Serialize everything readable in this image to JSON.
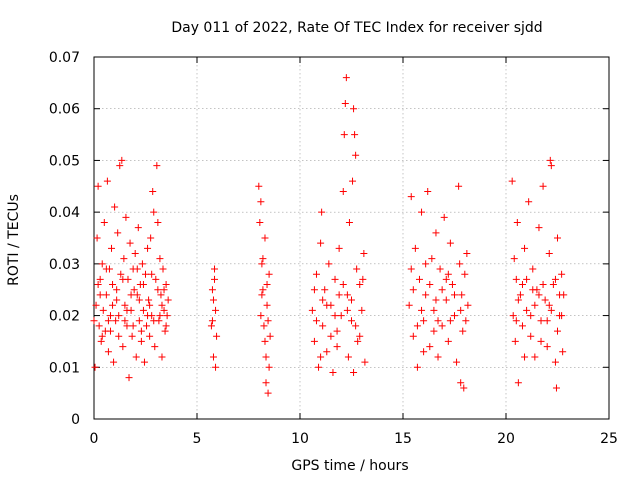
{
  "chart_data": {
    "type": "scatter",
    "title": "Day 011 of 2022, Rate Of TEC Index for receiver sjdd",
    "xlabel": "GPS time / hours",
    "ylabel": "ROTI / TECUs",
    "xlim": [
      0,
      25
    ],
    "ylim": [
      0,
      0.07
    ],
    "x_ticks": [
      "0",
      "5",
      "10",
      "15",
      "20",
      "25"
    ],
    "y_ticks": [
      "0",
      "0.01",
      "0.02",
      "0.03",
      "0.04",
      "0.05",
      "0.06",
      "0.07"
    ],
    "grid": true,
    "marker": "+",
    "color": "#ff0000",
    "series": [
      {
        "name": "ROTI",
        "points": [
          [
            0.0,
            0.019
          ],
          [
            0.05,
            0.01
          ],
          [
            0.1,
            0.022
          ],
          [
            0.15,
            0.035
          ],
          [
            0.2,
            0.045
          ],
          [
            0.25,
            0.018
          ],
          [
            0.3,
            0.027
          ],
          [
            0.35,
            0.015
          ],
          [
            0.4,
            0.03
          ],
          [
            0.45,
            0.021
          ],
          [
            0.5,
            0.038
          ],
          [
            0.55,
            0.017
          ],
          [
            0.6,
            0.024
          ],
          [
            0.65,
            0.046
          ],
          [
            0.7,
            0.013
          ],
          [
            0.75,
            0.029
          ],
          [
            0.8,
            0.02
          ],
          [
            0.85,
            0.033
          ],
          [
            0.9,
            0.026
          ],
          [
            0.95,
            0.011
          ],
          [
            1.0,
            0.041
          ],
          [
            1.05,
            0.019
          ],
          [
            1.1,
            0.023
          ],
          [
            1.15,
            0.036
          ],
          [
            1.2,
            0.016
          ],
          [
            1.25,
            0.049
          ],
          [
            1.3,
            0.028
          ],
          [
            1.35,
            0.05
          ],
          [
            1.4,
            0.014
          ],
          [
            1.45,
            0.031
          ],
          [
            1.5,
            0.022
          ],
          [
            1.55,
            0.039
          ],
          [
            1.6,
            0.018
          ],
          [
            1.65,
            0.027
          ],
          [
            1.7,
            0.008
          ],
          [
            1.75,
            0.034
          ],
          [
            1.8,
            0.021
          ],
          [
            1.85,
            0.016
          ],
          [
            1.9,
            0.029
          ],
          [
            1.95,
            0.025
          ],
          [
            2.0,
            0.032
          ],
          [
            2.05,
            0.012
          ],
          [
            2.1,
            0.024
          ],
          [
            2.15,
            0.037
          ],
          [
            2.2,
            0.019
          ],
          [
            2.25,
            0.026
          ],
          [
            2.3,
            0.015
          ],
          [
            2.35,
            0.03
          ],
          [
            2.4,
            0.021
          ],
          [
            2.45,
            0.011
          ],
          [
            2.5,
            0.028
          ],
          [
            2.55,
            0.018
          ],
          [
            2.6,
            0.033
          ],
          [
            2.65,
            0.023
          ],
          [
            2.7,
            0.016
          ],
          [
            2.75,
            0.035
          ],
          [
            2.8,
            0.02
          ],
          [
            2.85,
            0.044
          ],
          [
            2.9,
            0.04
          ],
          [
            2.95,
            0.014
          ],
          [
            3.0,
            0.027
          ],
          [
            3.05,
            0.049
          ],
          [
            3.1,
            0.038
          ],
          [
            3.15,
            0.019
          ],
          [
            3.2,
            0.031
          ],
          [
            3.25,
            0.024
          ],
          [
            3.3,
            0.012
          ],
          [
            3.35,
            0.029
          ],
          [
            3.4,
            0.021
          ],
          [
            3.45,
            0.017
          ],
          [
            3.5,
            0.026
          ],
          [
            3.55,
            0.02
          ],
          [
            3.6,
            0.023
          ],
          [
            0.3,
            0.024
          ],
          [
            0.7,
            0.019
          ],
          [
            1.1,
            0.025
          ],
          [
            1.6,
            0.021
          ],
          [
            2.2,
            0.023
          ],
          [
            2.7,
            0.022
          ],
          [
            3.2,
            0.02
          ],
          [
            0.4,
            0.016
          ],
          [
            0.9,
            0.022
          ],
          [
            1.4,
            0.027
          ],
          [
            1.9,
            0.018
          ],
          [
            2.4,
            0.026
          ],
          [
            2.9,
            0.019
          ],
          [
            3.4,
            0.025
          ],
          [
            0.6,
            0.029
          ],
          [
            1.2,
            0.02
          ],
          [
            1.8,
            0.024
          ],
          [
            2.3,
            0.017
          ],
          [
            2.8,
            0.028
          ],
          [
            3.3,
            0.022
          ],
          [
            0.2,
            0.026
          ],
          [
            0.8,
            0.017
          ],
          [
            1.5,
            0.019
          ],
          [
            2.1,
            0.029
          ],
          [
            2.6,
            0.02
          ],
          [
            3.1,
            0.025
          ],
          [
            3.5,
            0.018
          ],
          [
            5.7,
            0.018
          ],
          [
            5.75,
            0.025
          ],
          [
            5.8,
            0.012
          ],
          [
            5.85,
            0.029
          ],
          [
            5.9,
            0.021
          ],
          [
            5.95,
            0.016
          ],
          [
            5.8,
            0.023
          ],
          [
            5.9,
            0.01
          ],
          [
            5.75,
            0.019
          ],
          [
            5.85,
            0.027
          ],
          [
            8.0,
            0.045
          ],
          [
            8.05,
            0.038
          ],
          [
            8.1,
            0.042
          ],
          [
            8.15,
            0.03
          ],
          [
            8.2,
            0.025
          ],
          [
            8.25,
            0.018
          ],
          [
            8.3,
            0.035
          ],
          [
            8.35,
            0.012
          ],
          [
            8.4,
            0.022
          ],
          [
            8.45,
            0.005
          ],
          [
            8.5,
            0.028
          ],
          [
            8.55,
            0.016
          ],
          [
            8.1,
            0.02
          ],
          [
            8.2,
            0.031
          ],
          [
            8.3,
            0.015
          ],
          [
            8.4,
            0.026
          ],
          [
            8.5,
            0.01
          ],
          [
            8.35,
            0.007
          ],
          [
            8.15,
            0.024
          ],
          [
            8.45,
            0.019
          ],
          [
            10.6,
            0.021
          ],
          [
            10.7,
            0.015
          ],
          [
            10.8,
            0.028
          ],
          [
            10.9,
            0.01
          ],
          [
            11.0,
            0.034
          ],
          [
            11.05,
            0.04
          ],
          [
            11.1,
            0.018
          ],
          [
            11.2,
            0.025
          ],
          [
            11.3,
            0.013
          ],
          [
            11.4,
            0.03
          ],
          [
            11.5,
            0.022
          ],
          [
            11.6,
            0.009
          ],
          [
            11.7,
            0.027
          ],
          [
            11.8,
            0.017
          ],
          [
            11.9,
            0.033
          ],
          [
            12.0,
            0.02
          ],
          [
            12.1,
            0.044
          ],
          [
            12.15,
            0.055
          ],
          [
            12.2,
            0.061
          ],
          [
            12.25,
            0.066
          ],
          [
            12.3,
            0.024
          ],
          [
            12.35,
            0.012
          ],
          [
            12.4,
            0.038
          ],
          [
            12.5,
            0.019
          ],
          [
            12.55,
            0.046
          ],
          [
            12.6,
            0.06
          ],
          [
            12.65,
            0.055
          ],
          [
            12.7,
            0.051
          ],
          [
            12.75,
            0.029
          ],
          [
            12.8,
            0.015
          ],
          [
            12.9,
            0.026
          ],
          [
            13.0,
            0.021
          ],
          [
            13.1,
            0.032
          ],
          [
            13.15,
            0.011
          ],
          [
            11.1,
            0.023
          ],
          [
            11.5,
            0.016
          ],
          [
            11.9,
            0.024
          ],
          [
            12.3,
            0.021
          ],
          [
            12.7,
            0.018
          ],
          [
            13.05,
            0.027
          ],
          [
            10.8,
            0.019
          ],
          [
            11.3,
            0.022
          ],
          [
            11.7,
            0.02
          ],
          [
            12.1,
            0.026
          ],
          [
            12.5,
            0.023
          ],
          [
            12.9,
            0.016
          ],
          [
            11.0,
            0.012
          ],
          [
            11.8,
            0.014
          ],
          [
            12.6,
            0.009
          ],
          [
            10.7,
            0.025
          ],
          [
            15.3,
            0.022
          ],
          [
            15.4,
            0.043
          ],
          [
            15.5,
            0.016
          ],
          [
            15.6,
            0.033
          ],
          [
            15.7,
            0.01
          ],
          [
            15.8,
            0.027
          ],
          [
            15.9,
            0.04
          ],
          [
            16.0,
            0.019
          ],
          [
            16.1,
            0.024
          ],
          [
            16.2,
            0.044
          ],
          [
            16.3,
            0.014
          ],
          [
            16.4,
            0.031
          ],
          [
            16.5,
            0.021
          ],
          [
            16.6,
            0.036
          ],
          [
            16.7,
            0.012
          ],
          [
            16.8,
            0.029
          ],
          [
            16.9,
            0.018
          ],
          [
            17.0,
            0.039
          ],
          [
            17.1,
            0.023
          ],
          [
            17.2,
            0.015
          ],
          [
            17.3,
            0.034
          ],
          [
            17.4,
            0.026
          ],
          [
            17.5,
            0.02
          ],
          [
            17.6,
            0.011
          ],
          [
            17.7,
            0.045
          ],
          [
            17.75,
            0.03
          ],
          [
            17.8,
            0.007
          ],
          [
            17.85,
            0.024
          ],
          [
            17.9,
            0.017
          ],
          [
            17.95,
            0.006
          ],
          [
            18.0,
            0.028
          ],
          [
            18.05,
            0.019
          ],
          [
            18.1,
            0.032
          ],
          [
            18.15,
            0.022
          ],
          [
            15.5,
            0.025
          ],
          [
            15.9,
            0.021
          ],
          [
            16.3,
            0.026
          ],
          [
            16.7,
            0.019
          ],
          [
            17.1,
            0.027
          ],
          [
            17.5,
            0.024
          ],
          [
            15.7,
            0.018
          ],
          [
            16.1,
            0.03
          ],
          [
            16.5,
            0.017
          ],
          [
            16.9,
            0.025
          ],
          [
            17.3,
            0.019
          ],
          [
            17.8,
            0.021
          ],
          [
            15.4,
            0.029
          ],
          [
            16.0,
            0.013
          ],
          [
            16.6,
            0.023
          ],
          [
            17.2,
            0.028
          ],
          [
            20.3,
            0.046
          ],
          [
            20.35,
            0.02
          ],
          [
            20.4,
            0.031
          ],
          [
            20.45,
            0.015
          ],
          [
            20.5,
            0.027
          ],
          [
            20.55,
            0.038
          ],
          [
            20.6,
            0.007
          ],
          [
            20.7,
            0.024
          ],
          [
            20.8,
            0.018
          ],
          [
            20.9,
            0.033
          ],
          [
            21.0,
            0.021
          ],
          [
            21.1,
            0.042
          ],
          [
            21.2,
            0.016
          ],
          [
            21.3,
            0.029
          ],
          [
            21.4,
            0.012
          ],
          [
            21.5,
            0.025
          ],
          [
            21.6,
            0.037
          ],
          [
            21.7,
            0.019
          ],
          [
            21.8,
            0.045
          ],
          [
            21.9,
            0.023
          ],
          [
            22.0,
            0.014
          ],
          [
            22.1,
            0.032
          ],
          [
            22.15,
            0.05
          ],
          [
            22.2,
            0.049
          ],
          [
            22.3,
            0.026
          ],
          [
            22.4,
            0.011
          ],
          [
            22.45,
            0.006
          ],
          [
            22.5,
            0.035
          ],
          [
            22.6,
            0.02
          ],
          [
            22.7,
            0.028
          ],
          [
            22.75,
            0.013
          ],
          [
            22.8,
            0.024
          ],
          [
            20.6,
            0.023
          ],
          [
            21.0,
            0.027
          ],
          [
            21.4,
            0.022
          ],
          [
            21.8,
            0.026
          ],
          [
            22.2,
            0.021
          ],
          [
            22.6,
            0.024
          ],
          [
            20.8,
            0.026
          ],
          [
            21.2,
            0.02
          ],
          [
            21.6,
            0.024
          ],
          [
            22.0,
            0.019
          ],
          [
            22.4,
            0.027
          ],
          [
            20.5,
            0.019
          ],
          [
            21.3,
            0.025
          ],
          [
            22.1,
            0.022
          ],
          [
            22.7,
            0.02
          ],
          [
            20.9,
            0.012
          ],
          [
            21.7,
            0.015
          ],
          [
            22.5,
            0.017
          ]
        ]
      }
    ]
  }
}
